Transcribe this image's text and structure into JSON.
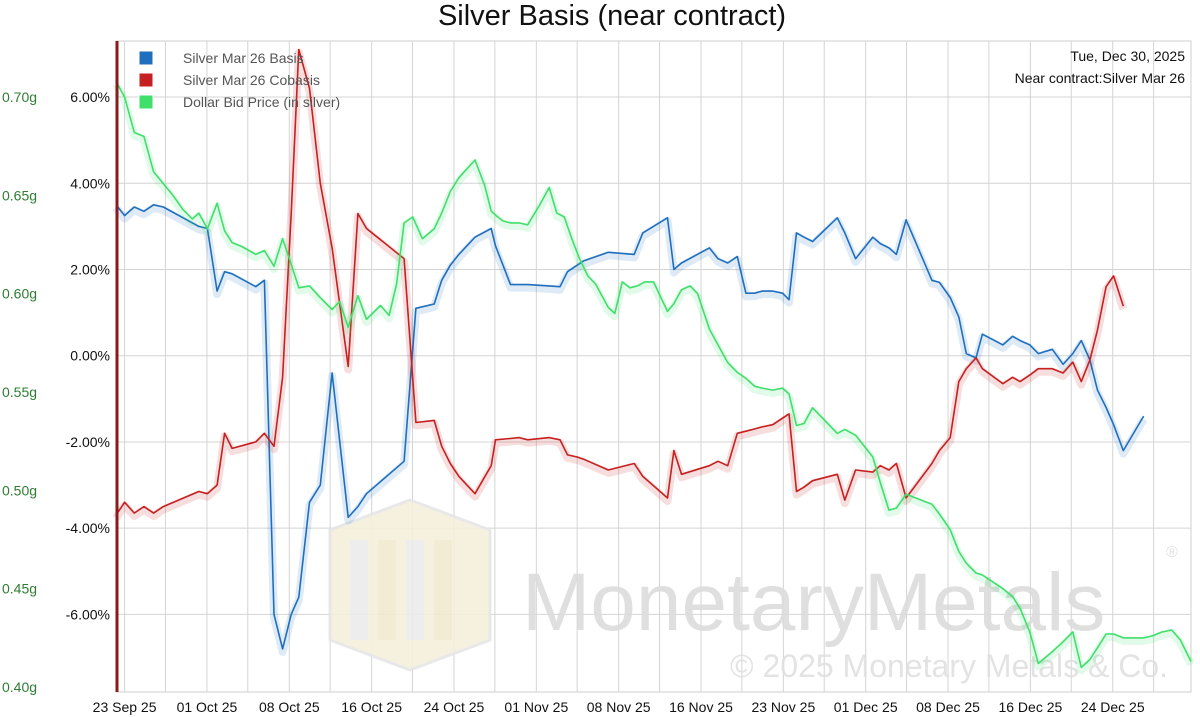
{
  "info": {
    "date": "Tue, Dec 30, 2025",
    "near_contract": "Near contract:Silver Mar 26"
  },
  "watermark": {
    "brand": "MonetaryMetals",
    "copyright": "© 2025 Monetary Metals & Co.",
    "registered": "®"
  },
  "chart_data": {
    "type": "line",
    "title": "Silver Basis (near contract)",
    "xlabel": "",
    "ylabel": "",
    "x_ticks": [
      "23 Sep 25",
      "01 Oct 25",
      "08 Oct 25",
      "16 Oct 25",
      "24 Oct 25",
      "01 Nov 25",
      "08 Nov 25",
      "16 Nov 25",
      "23 Nov 25",
      "01 Dec 25",
      "08 Dec 25",
      "16 Dec 25",
      "24 Dec 25"
    ],
    "y_left_ticks": [
      "6.00%",
      "4.00%",
      "2.00%",
      "0.00%",
      "-2.00%",
      "-4.00%",
      "-6.00%"
    ],
    "y_left_values": [
      6,
      4,
      2,
      0,
      -2,
      -4,
      -6
    ],
    "y_right_ticks": [
      "0.70g",
      "0.65g",
      "0.60g",
      "0.55g",
      "0.50g",
      "0.45g",
      "0.40g"
    ],
    "y_right_values": [
      0.7,
      0.65,
      0.6,
      0.55,
      0.5,
      0.45,
      0.4
    ],
    "xlim": [
      0,
      100
    ],
    "ylim_left": [
      -7.8,
      7.3
    ],
    "ylim_right": [
      0.3975,
      0.7285
    ],
    "grid": true,
    "legend_position": "top-left",
    "series": [
      {
        "name": "Silver Mar 26 Basis",
        "axis": "left",
        "color": "#1f6fbf",
        "x": [
          0,
          0.8,
          1.7,
          2.6,
          3.5,
          4.4,
          7.7,
          8.5,
          9.4,
          10.1,
          10.8,
          13.0,
          13.8,
          14.7,
          15.5,
          16.3,
          17.0,
          18.0,
          19.0,
          20.1,
          21.6,
          22.5,
          23.3,
          26.8,
          27.9,
          29.6,
          30.3,
          31.1,
          31.9,
          33.4,
          34.9,
          35.3,
          36.7,
          37.5,
          38.3,
          40.3,
          41.3,
          42.0,
          42.9,
          43.5,
          45.8,
          48.2,
          49.0,
          51.3,
          51.9,
          52.6,
          55.2,
          56.0,
          56.9,
          57.8,
          58.6,
          59.4,
          60.1,
          61.1,
          62.0,
          62.6,
          63.3,
          64.0,
          64.8,
          67.1,
          67.8,
          68.8,
          70.4,
          71.1,
          71.9,
          72.6,
          73.5,
          75.9,
          76.6,
          77.6,
          78.4,
          79.1,
          80.0,
          80.6,
          82.5,
          83.4,
          84.1,
          85.0,
          85.8,
          87.1,
          88.1,
          89.0,
          89.8,
          90.6,
          91.3,
          92.1,
          92.8,
          93.7,
          95.6,
          96.4,
          97.3,
          98.2,
          99.0,
          100.0
        ],
        "y": [
          3.5,
          3.25,
          3.45,
          3.35,
          3.5,
          3.45,
          3.0,
          2.95,
          1.5,
          1.95,
          1.9,
          1.6,
          1.75,
          -6.0,
          -6.8,
          -6.0,
          -5.6,
          -3.4,
          -3.0,
          -0.4,
          -3.75,
          -3.5,
          -3.2,
          -2.45,
          1.1,
          1.2,
          1.75,
          2.1,
          2.35,
          2.75,
          2.95,
          2.55,
          1.65,
          1.65,
          1.65,
          1.62,
          1.6,
          1.95,
          2.1,
          2.2,
          2.4,
          2.35,
          2.85,
          3.2,
          2.0,
          2.15,
          2.5,
          2.25,
          2.15,
          2.3,
          1.45,
          1.45,
          1.5,
          1.5,
          1.45,
          1.3,
          2.85,
          2.75,
          2.65,
          3.2,
          2.85,
          2.25,
          2.75,
          2.6,
          2.5,
          2.35,
          3.15,
          1.75,
          1.7,
          1.35,
          0.9,
          0.05,
          -0.05,
          0.5,
          0.25,
          0.45,
          0.35,
          0.25,
          0.05,
          0.15,
          -0.2,
          0.05,
          0.35,
          -0.1,
          -0.8,
          -1.2,
          -1.6,
          -2.2,
          -1.4,
          null,
          null,
          null,
          null,
          null
        ]
      },
      {
        "name": "Silver Mar 26 Cobasis",
        "axis": "left",
        "color": "#c62020",
        "x": [
          0,
          0.8,
          1.7,
          2.6,
          3.5,
          4.4,
          7.7,
          8.5,
          9.4,
          10.1,
          10.8,
          13.0,
          13.8,
          14.7,
          15.5,
          16.3,
          17.0,
          18.0,
          19.0,
          20.1,
          21.6,
          22.5,
          23.3,
          26.8,
          27.9,
          29.6,
          30.3,
          31.1,
          31.9,
          33.4,
          34.9,
          35.3,
          36.7,
          37.5,
          38.3,
          40.3,
          41.3,
          42.0,
          42.9,
          43.5,
          45.8,
          48.2,
          49.0,
          51.3,
          51.9,
          52.6,
          55.2,
          56.0,
          56.9,
          57.8,
          58.6,
          59.4,
          60.1,
          61.1,
          62.0,
          62.6,
          63.3,
          64.0,
          64.8,
          67.1,
          67.8,
          68.8,
          70.4,
          71.1,
          71.9,
          72.6,
          73.5,
          75.9,
          76.6,
          77.6,
          78.4,
          79.1,
          80.0,
          80.6,
          82.5,
          83.4,
          84.1,
          85.0,
          85.8,
          87.1,
          88.1,
          89.0,
          89.8,
          90.6,
          91.3,
          92.1,
          92.8,
          93.7,
          95.6,
          96.4,
          97.3,
          98.2,
          99.0,
          100.0
        ],
        "y": [
          -3.7,
          -3.4,
          -3.65,
          -3.5,
          -3.65,
          -3.5,
          -3.15,
          -3.2,
          -3.0,
          -1.8,
          -2.15,
          -2.0,
          -1.8,
          -2.1,
          -0.5,
          3.3,
          7.1,
          6.2,
          4.0,
          2.5,
          -0.25,
          3.3,
          2.95,
          2.25,
          -1.55,
          -1.5,
          -2.1,
          -2.5,
          -2.8,
          -3.2,
          -2.55,
          -1.95,
          -1.92,
          -1.9,
          -1.95,
          -1.9,
          -1.95,
          -2.3,
          -2.35,
          -2.4,
          -2.65,
          -2.5,
          -2.8,
          -3.3,
          -2.2,
          -2.75,
          -2.55,
          -2.45,
          -2.55,
          -1.8,
          -1.75,
          -1.7,
          -1.65,
          -1.6,
          -1.45,
          -1.35,
          -3.15,
          -3.05,
          -2.9,
          -2.75,
          -3.35,
          -2.65,
          -2.7,
          -2.55,
          -2.65,
          -2.5,
          -3.3,
          -2.5,
          -2.2,
          -1.9,
          -0.6,
          -0.3,
          -0.05,
          -0.3,
          -0.65,
          -0.5,
          -0.6,
          -0.45,
          -0.3,
          -0.3,
          -0.4,
          -0.15,
          -0.6,
          -0.1,
          0.6,
          1.6,
          1.85,
          1.15,
          null,
          null,
          null,
          null,
          null,
          null
        ]
      },
      {
        "name": "Dollar Bid Price (in silver)",
        "axis": "right",
        "color": "#3ee06a",
        "x": [
          0,
          0.8,
          1.7,
          2.6,
          3.5,
          4.4,
          5.3,
          6.2,
          7.1,
          7.7,
          8.5,
          9.4,
          10.1,
          10.8,
          11.7,
          13.0,
          13.8,
          14.7,
          15.5,
          16.3,
          17.0,
          18.0,
          19.0,
          20.1,
          20.8,
          21.6,
          22.5,
          23.3,
          24.6,
          25.4,
          26.1,
          26.8,
          27.6,
          28.5,
          29.6,
          30.3,
          31.1,
          31.9,
          33.4,
          34.3,
          34.9,
          35.3,
          36.0,
          36.7,
          37.5,
          38.3,
          39.4,
          40.3,
          41.0,
          41.7,
          42.4,
          43.1,
          43.9,
          44.6,
          45.8,
          46.4,
          47.1,
          47.8,
          48.5,
          49.2,
          50.0,
          51.3,
          51.9,
          52.6,
          53.4,
          54.1,
          55.2,
          56.0,
          56.9,
          57.8,
          58.6,
          59.4,
          60.1,
          61.1,
          62.0,
          62.6,
          63.3,
          64.0,
          64.8,
          67.1,
          67.8,
          68.8,
          70.4,
          71.1,
          71.9,
          72.6,
          73.5,
          75.9,
          76.6,
          77.6,
          78.4,
          79.1,
          80.0,
          80.6,
          82.5,
          83.4,
          84.1,
          85.0,
          85.8,
          87.1,
          88.1,
          89.0,
          89.8,
          90.6,
          91.3,
          92.1,
          92.8,
          93.7,
          95.6,
          96.4,
          97.3,
          98.2,
          99.0,
          100.0
        ],
        "y": [
          0.708,
          0.7,
          0.682,
          0.68,
          0.662,
          0.656,
          0.65,
          0.643,
          0.638,
          0.641,
          0.633,
          0.646,
          0.632,
          0.626,
          0.624,
          0.62,
          0.622,
          0.614,
          0.628,
          0.615,
          0.603,
          0.604,
          0.598,
          0.592,
          0.596,
          0.583,
          0.599,
          0.587,
          0.594,
          0.589,
          0.605,
          0.636,
          0.639,
          0.628,
          0.633,
          0.641,
          0.652,
          0.659,
          0.668,
          0.655,
          0.642,
          0.64,
          0.637,
          0.636,
          0.636,
          0.635,
          0.645,
          0.654,
          0.641,
          0.639,
          0.628,
          0.618,
          0.609,
          0.605,
          0.593,
          0.59,
          0.606,
          0.603,
          0.604,
          0.606,
          0.606,
          0.591,
          0.595,
          0.602,
          0.604,
          0.6,
          0.582,
          0.574,
          0.565,
          0.56,
          0.557,
          0.553,
          0.552,
          0.551,
          0.552,
          0.549,
          0.533,
          0.534,
          0.542,
          0.529,
          0.531,
          0.528,
          0.517,
          0.504,
          0.49,
          0.491,
          0.498,
          0.493,
          0.488,
          0.48,
          0.469,
          0.463,
          0.458,
          0.457,
          0.45,
          0.446,
          0.44,
          0.428,
          0.412,
          0.418,
          0.423,
          0.428,
          0.41,
          0.414,
          0.42,
          0.427,
          0.427,
          0.425,
          0.425,
          0.426,
          0.428,
          0.429,
          0.424,
          0.413
        ]
      }
    ]
  }
}
